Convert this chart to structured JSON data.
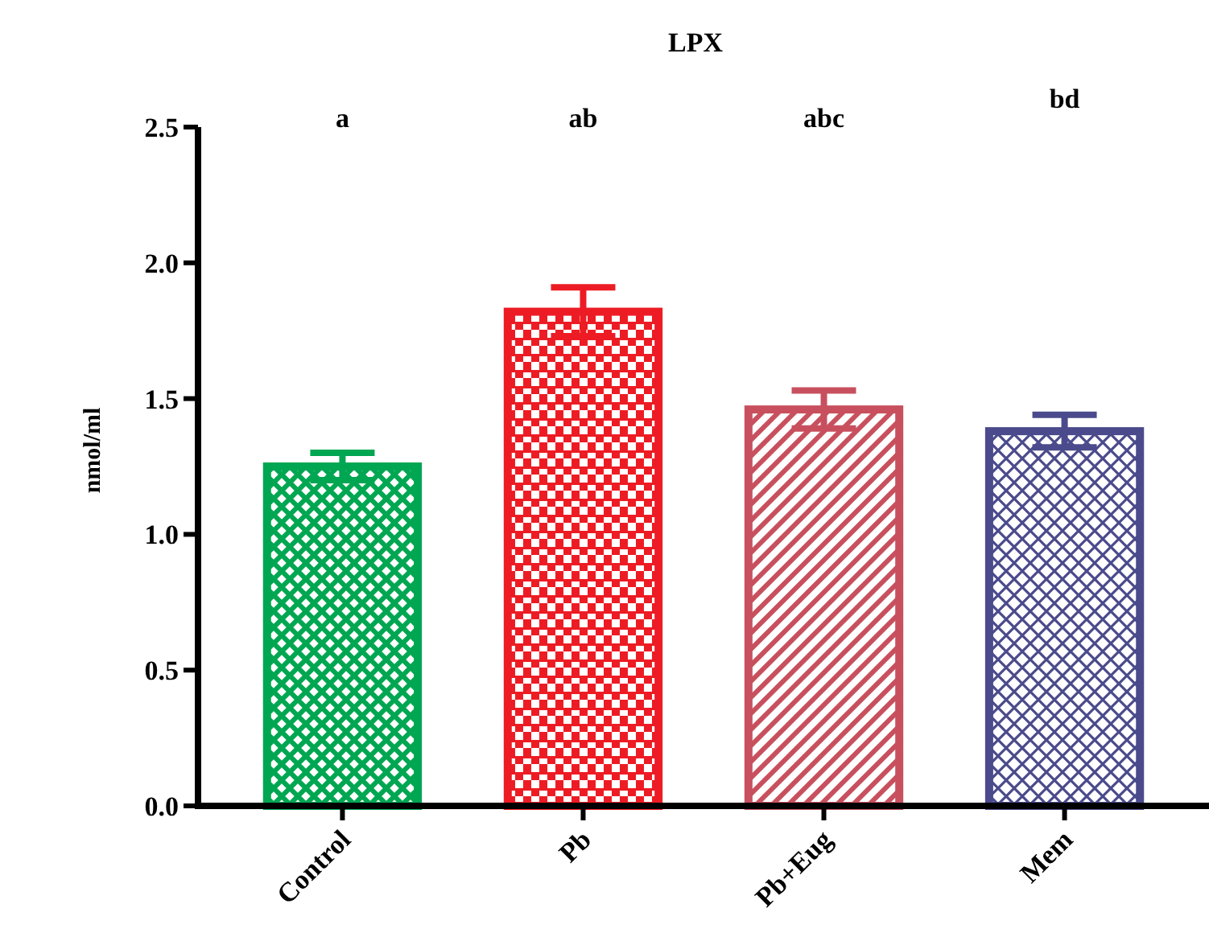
{
  "chart_data": {
    "type": "bar",
    "title": "LPX",
    "ylabel": "nmol/ml",
    "categories": [
      "Control",
      "Pb",
      "Pb+Eug",
      "Mem"
    ],
    "values": [
      1.25,
      1.82,
      1.46,
      1.38
    ],
    "errors": [
      0.05,
      0.09,
      0.07,
      0.06
    ],
    "colors": [
      "#00a651",
      "#ed1c24",
      "#c8505e",
      "#4a4a8c"
    ],
    "ylim": [
      0,
      2.5
    ],
    "yticks": [
      {
        "value": 0,
        "label": "0.0"
      },
      {
        "value": 0.5,
        "label": "0.5"
      },
      {
        "value": 1,
        "label": "1.0"
      },
      {
        "value": 1.5,
        "label": "1.5"
      },
      {
        "value": 2,
        "label": "2.0"
      },
      {
        "value": 2.5,
        "label": "2.5"
      }
    ],
    "annotations": [
      "a",
      "ab",
      "abc",
      "bd"
    ],
    "grid": false
  }
}
